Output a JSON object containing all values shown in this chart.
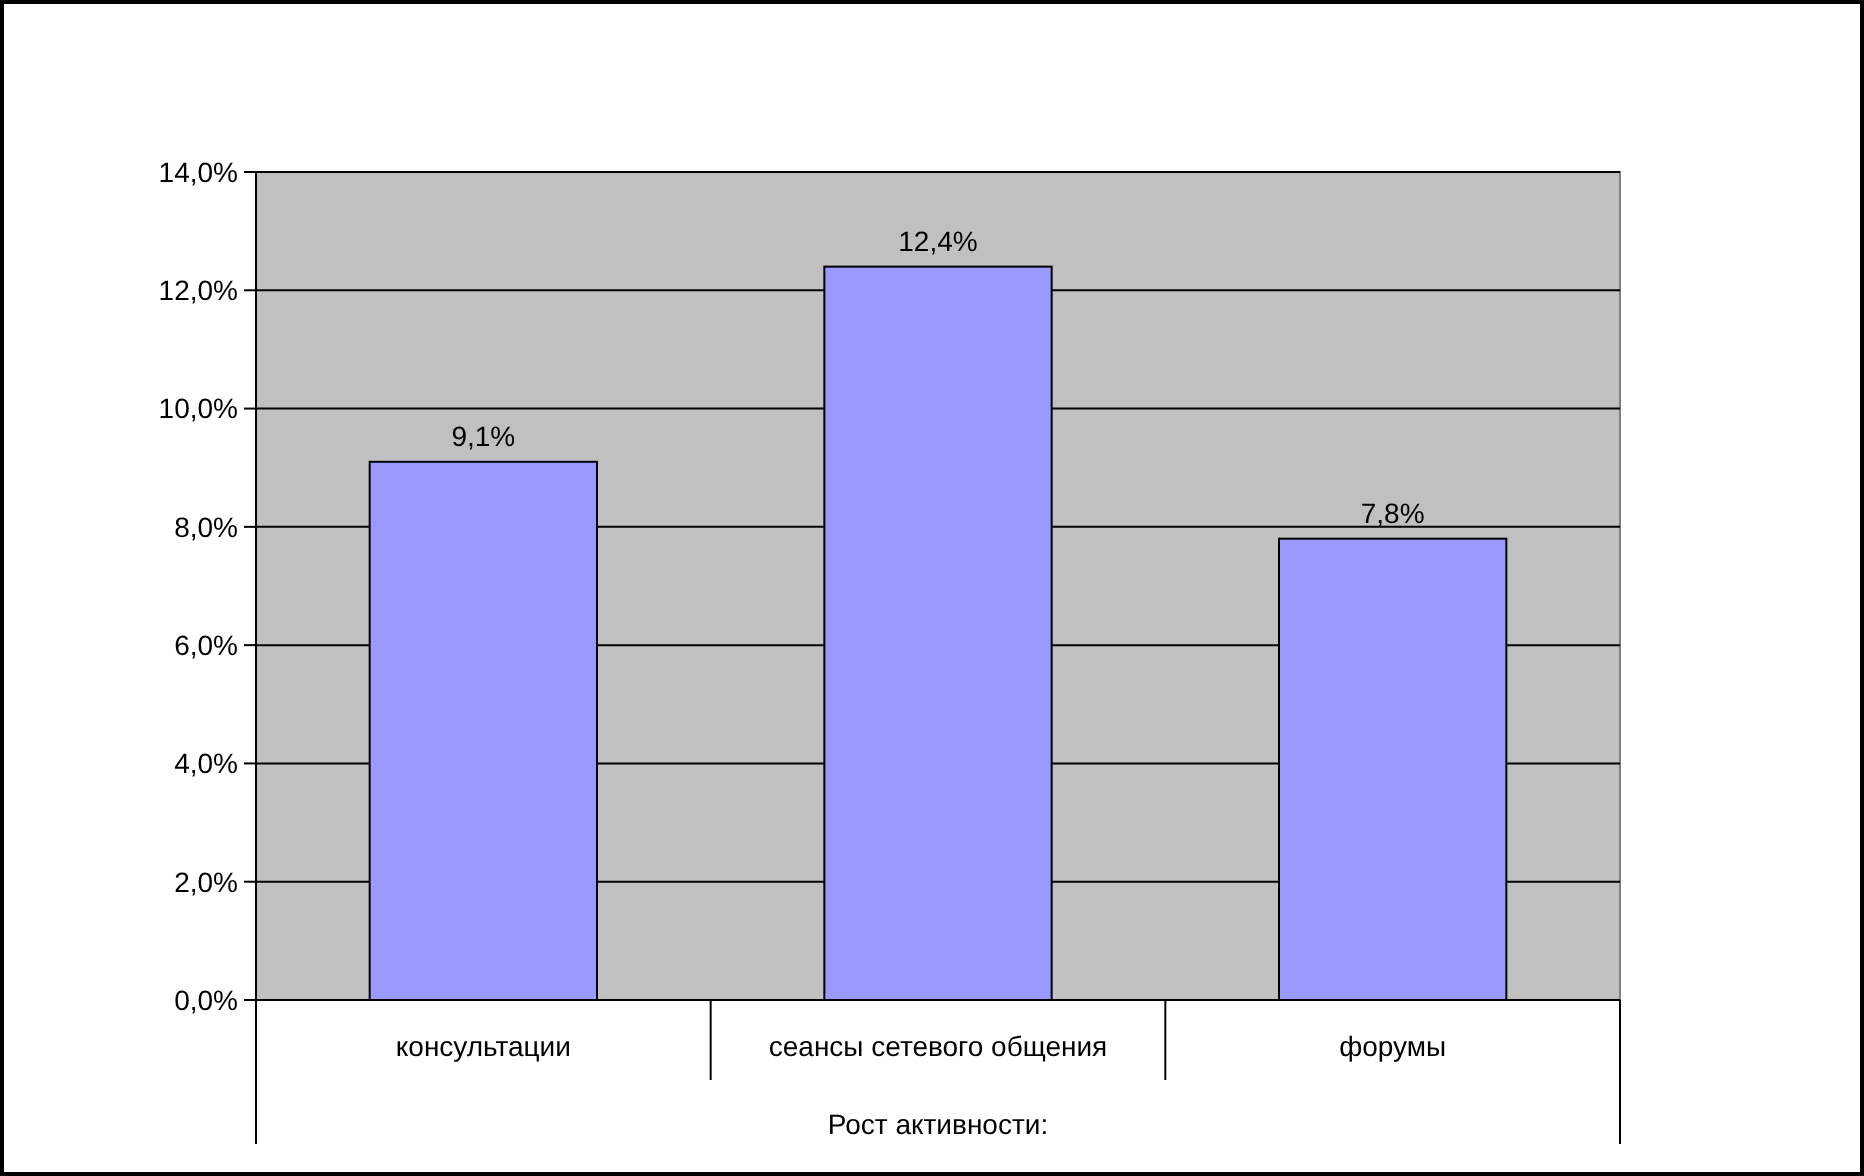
{
  "chart_data": {
    "type": "bar",
    "xlabel": "Рост активности:",
    "categories": [
      "консультации",
      "сеансы сетевого общения",
      "форумы"
    ],
    "values": [
      9.1,
      12.4,
      7.8
    ],
    "value_labels": [
      "9,1%",
      "12,4%",
      "7,8%"
    ],
    "color": "#9999ff",
    "ylim": [
      0,
      14
    ],
    "yticks": [
      {
        "value": 0,
        "label": "0,0%"
      },
      {
        "value": 2,
        "label": "2,0%"
      },
      {
        "value": 4,
        "label": "4,0%"
      },
      {
        "value": 6,
        "label": "6,0%"
      },
      {
        "value": 8,
        "label": "8,0%"
      },
      {
        "value": 10,
        "label": "10,0%"
      },
      {
        "value": 12,
        "label": "12,0%"
      },
      {
        "value": 14,
        "label": "14,0%"
      }
    ],
    "grid": "y"
  }
}
